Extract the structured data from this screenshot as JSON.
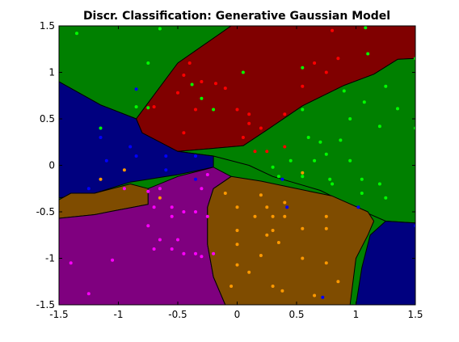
{
  "chart_data": {
    "type": "scatter",
    "title": "Discr. Classification: Generative Gaussian Model",
    "xlabel": "",
    "ylabel": "",
    "xlim": [
      -1.5,
      1.5
    ],
    "ylim": [
      -1.5,
      1.5
    ],
    "x_ticks": [
      "-1.5",
      "-1",
      "-0.5",
      "0",
      "0.5",
      "1",
      "1.5"
    ],
    "y_ticks": [
      "1.5",
      "1",
      "0.5",
      "0",
      "-0.5",
      "-1",
      "-1.5"
    ],
    "grid": false,
    "regions": [
      {
        "class": "green",
        "color": "#008000",
        "polygon": [
          [
            -1.5,
            1.5
          ],
          [
            -0.05,
            1.5
          ],
          [
            -0.5,
            1.1
          ],
          [
            -0.85,
            0.5
          ],
          [
            -1.15,
            0.65
          ],
          [
            -1.5,
            0.9
          ]
        ]
      },
      {
        "class": "darkred",
        "color": "#800000",
        "polygon": [
          [
            -0.05,
            1.5
          ],
          [
            1.5,
            1.5
          ],
          [
            1.5,
            1.15
          ],
          [
            1.35,
            1.14
          ],
          [
            1.15,
            0.98
          ],
          [
            0.9,
            0.86
          ],
          [
            0.55,
            0.64
          ],
          [
            0.25,
            0.38
          ],
          [
            0.05,
            0.21
          ],
          [
            -0.5,
            0.15
          ],
          [
            -0.8,
            0.35
          ],
          [
            -0.85,
            0.5
          ],
          [
            -0.5,
            1.1
          ]
        ]
      },
      {
        "class": "green",
        "color": "#008000",
        "polygon": [
          [
            1.5,
            1.15
          ],
          [
            1.5,
            -0.62
          ],
          [
            1.25,
            -0.6
          ],
          [
            1.0,
            -0.46
          ],
          [
            0.7,
            -0.27
          ],
          [
            0.3,
            -0.12
          ],
          [
            0.1,
            0.0
          ],
          [
            -0.2,
            0.1
          ],
          [
            -0.5,
            0.15
          ],
          [
            0.05,
            0.21
          ],
          [
            0.25,
            0.38
          ],
          [
            0.55,
            0.64
          ],
          [
            0.9,
            0.86
          ],
          [
            1.15,
            0.98
          ],
          [
            1.35,
            1.14
          ]
        ]
      },
      {
        "class": "navy",
        "color": "#00007f",
        "polygon": [
          [
            -1.5,
            0.9
          ],
          [
            -1.15,
            0.65
          ],
          [
            -0.85,
            0.5
          ],
          [
            -0.8,
            0.35
          ],
          [
            -0.5,
            0.15
          ],
          [
            -0.2,
            0.1
          ],
          [
            -0.2,
            -0.02
          ],
          [
            -0.5,
            -0.1
          ],
          [
            -0.9,
            -0.18
          ],
          [
            -1.2,
            -0.3
          ],
          [
            -1.5,
            -0.35
          ]
        ]
      },
      {
        "class": "navy",
        "color": "#00007f",
        "polygon": [
          [
            1.5,
            -0.62
          ],
          [
            1.5,
            -1.5
          ],
          [
            1.0,
            -1.5
          ],
          [
            1.05,
            -1.1
          ],
          [
            1.12,
            -0.75
          ],
          [
            1.25,
            -0.6
          ]
        ]
      },
      {
        "class": "brown",
        "color": "#7f4c00",
        "polygon": [
          [
            -1.5,
            -0.37
          ],
          [
            -1.4,
            -0.3
          ],
          [
            -1.2,
            -0.3
          ],
          [
            -0.9,
            -0.2
          ],
          [
            -0.75,
            -0.25
          ],
          [
            -0.75,
            -0.42
          ],
          [
            -1.0,
            -0.48
          ],
          [
            -1.2,
            -0.53
          ],
          [
            -1.5,
            -0.57
          ]
        ]
      },
      {
        "class": "purple",
        "color": "#7f007f",
        "polygon": [
          [
            -1.5,
            -0.57
          ],
          [
            -1.2,
            -0.53
          ],
          [
            -1.0,
            -0.48
          ],
          [
            -0.75,
            -0.42
          ],
          [
            -0.75,
            -0.25
          ],
          [
            -0.5,
            -0.12
          ],
          [
            -0.2,
            -0.02
          ],
          [
            -0.05,
            -0.12
          ],
          [
            -0.2,
            -0.25
          ],
          [
            -0.25,
            -0.45
          ],
          [
            -0.25,
            -0.85
          ],
          [
            -0.2,
            -1.2
          ],
          [
            -0.1,
            -1.5
          ],
          [
            -1.5,
            -1.5
          ]
        ]
      },
      {
        "class": "brown",
        "color": "#7f4c00",
        "polygon": [
          [
            -0.05,
            -0.12
          ],
          [
            0.2,
            -0.17
          ],
          [
            0.5,
            -0.25
          ],
          [
            0.8,
            -0.33
          ],
          [
            1.1,
            -0.5
          ],
          [
            1.15,
            -0.6
          ],
          [
            1.1,
            -0.75
          ],
          [
            1.0,
            -1.0
          ],
          [
            0.95,
            -1.5
          ],
          [
            -0.1,
            -1.5
          ],
          [
            -0.2,
            -1.2
          ],
          [
            -0.25,
            -0.85
          ],
          [
            -0.25,
            -0.45
          ],
          [
            -0.2,
            -0.25
          ]
        ]
      }
    ],
    "series": [
      {
        "color": "#00ff00",
        "points": [
          [
            -1.35,
            1.42
          ],
          [
            -0.65,
            1.47
          ],
          [
            -0.75,
            1.1
          ],
          [
            -0.38,
            0.87
          ],
          [
            -0.3,
            0.72
          ],
          [
            -0.75,
            0.62
          ],
          [
            -0.85,
            0.63
          ],
          [
            -1.15,
            0.4
          ],
          [
            -0.2,
            0.6
          ],
          [
            0.05,
            1.0
          ],
          [
            0.55,
            1.05
          ],
          [
            1.08,
            1.48
          ],
          [
            1.1,
            1.2
          ],
          [
            1.5,
            1.15
          ],
          [
            1.25,
            0.85
          ],
          [
            0.9,
            0.8
          ],
          [
            1.07,
            0.68
          ],
          [
            1.35,
            0.61
          ],
          [
            0.55,
            0.6
          ],
          [
            0.95,
            0.5
          ],
          [
            1.2,
            0.42
          ],
          [
            1.5,
            0.4
          ],
          [
            0.6,
            0.3
          ],
          [
            0.7,
            0.25
          ],
          [
            0.87,
            0.27
          ],
          [
            0.75,
            0.12
          ],
          [
            0.45,
            0.05
          ],
          [
            0.65,
            0.05
          ],
          [
            0.95,
            0.05
          ],
          [
            0.35,
            -0.12
          ],
          [
            0.55,
            -0.12
          ],
          [
            0.78,
            -0.15
          ],
          [
            0.8,
            -0.2
          ],
          [
            1.05,
            -0.15
          ],
          [
            1.2,
            -0.2
          ],
          [
            1.25,
            -0.35
          ],
          [
            1.05,
            -0.3
          ],
          [
            0.3,
            -0.02
          ]
        ]
      },
      {
        "color": "#ff0000",
        "points": [
          [
            -0.4,
            1.1
          ],
          [
            -0.45,
            0.97
          ],
          [
            -0.3,
            0.9
          ],
          [
            -0.18,
            0.88
          ],
          [
            -0.1,
            0.83
          ],
          [
            -0.5,
            0.78
          ],
          [
            -0.35,
            0.6
          ],
          [
            0.0,
            0.6
          ],
          [
            0.1,
            0.55
          ],
          [
            0.1,
            0.45
          ],
          [
            0.2,
            0.4
          ],
          [
            0.05,
            0.3
          ],
          [
            0.4,
            0.55
          ],
          [
            0.55,
            0.85
          ],
          [
            0.65,
            1.1
          ],
          [
            0.75,
            1.0
          ],
          [
            0.85,
            1.15
          ],
          [
            0.8,
            1.45
          ],
          [
            -0.7,
            0.63
          ],
          [
            -0.45,
            0.35
          ],
          [
            0.15,
            0.15
          ],
          [
            0.25,
            0.15
          ],
          [
            0.4,
            0.2
          ]
        ]
      },
      {
        "color": "#0000ff",
        "points": [
          [
            -0.85,
            0.82
          ],
          [
            -1.15,
            0.3
          ],
          [
            -0.9,
            0.2
          ],
          [
            -0.85,
            0.1
          ],
          [
            -1.1,
            0.05
          ],
          [
            -0.6,
            0.1
          ],
          [
            -0.6,
            -0.05
          ],
          [
            -0.35,
            0.1
          ],
          [
            -0.35,
            -0.15
          ],
          [
            -1.25,
            -0.25
          ],
          [
            0.38,
            -0.15
          ],
          [
            0.42,
            -0.45
          ],
          [
            1.02,
            -0.45
          ],
          [
            0.72,
            -1.42
          ],
          [
            1.5,
            -0.65
          ]
        ]
      },
      {
        "color": "#ff00ff",
        "points": [
          [
            -0.95,
            -0.25
          ],
          [
            -0.75,
            -0.28
          ],
          [
            -0.65,
            -0.25
          ],
          [
            -0.7,
            -0.45
          ],
          [
            -0.55,
            -0.45
          ],
          [
            -0.55,
            -0.55
          ],
          [
            -0.45,
            -0.5
          ],
          [
            -0.35,
            -0.5
          ],
          [
            -0.25,
            -0.55
          ],
          [
            -0.3,
            -0.25
          ],
          [
            -0.25,
            -0.1
          ],
          [
            -0.75,
            -0.65
          ],
          [
            -0.65,
            -0.8
          ],
          [
            -0.7,
            -0.9
          ],
          [
            -0.5,
            -0.8
          ],
          [
            -0.55,
            -0.9
          ],
          [
            -0.45,
            -0.95
          ],
          [
            -0.35,
            -0.95
          ],
          [
            -0.3,
            -0.98
          ],
          [
            -0.2,
            -0.95
          ],
          [
            -1.05,
            -1.02
          ],
          [
            -1.4,
            -1.05
          ],
          [
            -1.25,
            -1.38
          ]
        ]
      },
      {
        "color": "#ff9900",
        "points": [
          [
            -0.95,
            -0.05
          ],
          [
            -1.15,
            -0.15
          ],
          [
            -0.65,
            -0.35
          ],
          [
            -0.1,
            -0.3
          ],
          [
            0.2,
            -0.32
          ],
          [
            0.0,
            -0.45
          ],
          [
            0.25,
            -0.45
          ],
          [
            0.15,
            -0.55
          ],
          [
            0.3,
            -0.55
          ],
          [
            0.4,
            -0.55
          ],
          [
            0.75,
            -0.55
          ],
          [
            0.3,
            -0.7
          ],
          [
            0.0,
            -0.7
          ],
          [
            0.25,
            -0.75
          ],
          [
            0.55,
            -0.68
          ],
          [
            0.75,
            -0.68
          ],
          [
            0.35,
            -0.83
          ],
          [
            0.0,
            -0.85
          ],
          [
            0.2,
            -0.97
          ],
          [
            0.55,
            -1.0
          ],
          [
            0.75,
            -1.05
          ],
          [
            0.0,
            -1.07
          ],
          [
            0.1,
            -1.15
          ],
          [
            0.3,
            -1.3
          ],
          [
            -0.05,
            -1.3
          ],
          [
            0.38,
            -1.35
          ],
          [
            0.65,
            -1.4
          ],
          [
            0.85,
            -1.25
          ],
          [
            0.4,
            -0.4
          ],
          [
            0.55,
            -0.08
          ]
        ]
      }
    ]
  }
}
